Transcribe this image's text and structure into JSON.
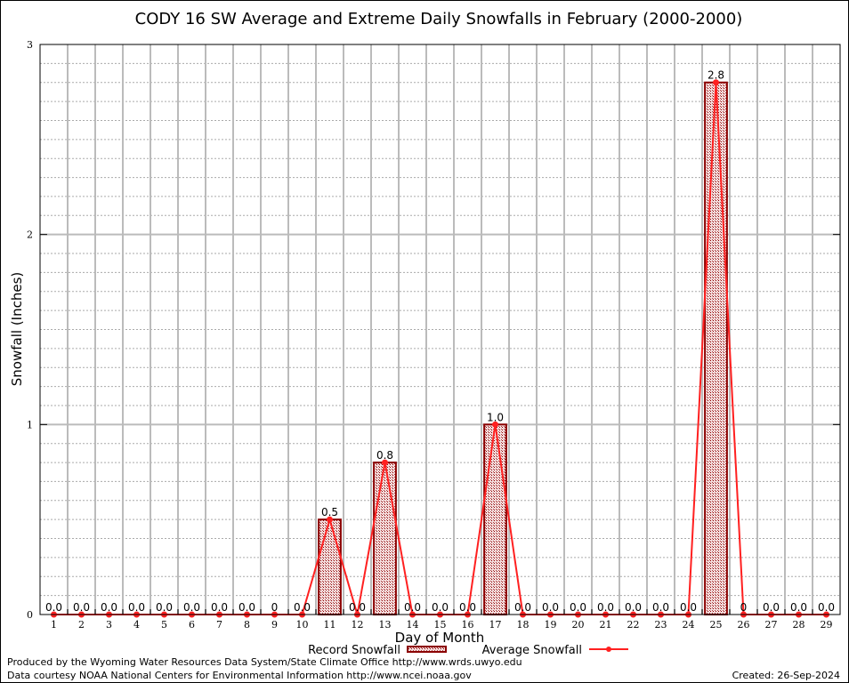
{
  "chart_data": {
    "type": "bar",
    "title": "CODY 16 SW Average and Extreme Daily Snowfalls in February (2000-2000)",
    "xlabel": "Day of Month",
    "ylabel": "Snowfall (Inches)",
    "ylim": [
      0,
      3
    ],
    "yticks": [
      "0",
      "1",
      "2",
      "3"
    ],
    "grid": true,
    "categories": [
      "1",
      "2",
      "3",
      "4",
      "5",
      "6",
      "7",
      "8",
      "9",
      "10",
      "11",
      "12",
      "13",
      "14",
      "15",
      "16",
      "17",
      "18",
      "19",
      "20",
      "21",
      "22",
      "23",
      "24",
      "25",
      "26",
      "27",
      "28",
      "29"
    ],
    "series": [
      {
        "name": "Record Snowfall",
        "type": "bar",
        "values": [
          0,
          0,
          0,
          0,
          0,
          0,
          0,
          0,
          0,
          0,
          0.5,
          0,
          0.8,
          0,
          0,
          0,
          1.0,
          0,
          0,
          0,
          0,
          0,
          0,
          0,
          2.8,
          0,
          0,
          0,
          0
        ],
        "labels": [
          "0.0",
          "0.0",
          "0.0",
          "0.0",
          "0.0",
          "0.0",
          "0.0",
          "0.0",
          "0",
          "0.0",
          "0.5",
          "0.0",
          "0.8",
          "0.0",
          "0.0",
          "0.0",
          "1.0",
          "0.0",
          "0.0",
          "0.0",
          "0.0",
          "0.0",
          "0.0",
          "0.0",
          "2.8",
          "0",
          "0.0",
          "0.0",
          "0.0"
        ],
        "color": "#8b0000"
      },
      {
        "name": "Average Snowfall",
        "type": "line",
        "values": [
          0,
          0,
          0,
          0,
          0,
          0,
          0,
          0,
          0,
          0,
          0.5,
          0,
          0.8,
          0,
          0,
          0,
          1.0,
          0,
          0,
          0,
          0,
          0,
          0,
          0,
          2.8,
          0,
          0,
          0,
          0
        ],
        "color": "#ff2020"
      }
    ],
    "legend": "bottom"
  },
  "footer": {
    "produced_by": "Produced by the Wyoming Water Resources Data System/State Climate Office http://www.wrds.uwyo.edu",
    "data_courtesy": "Data courtesy NOAA National Centers for Environmental Information http://www.ncei.noaa.gov",
    "created": "Created: 26-Sep-2024"
  }
}
